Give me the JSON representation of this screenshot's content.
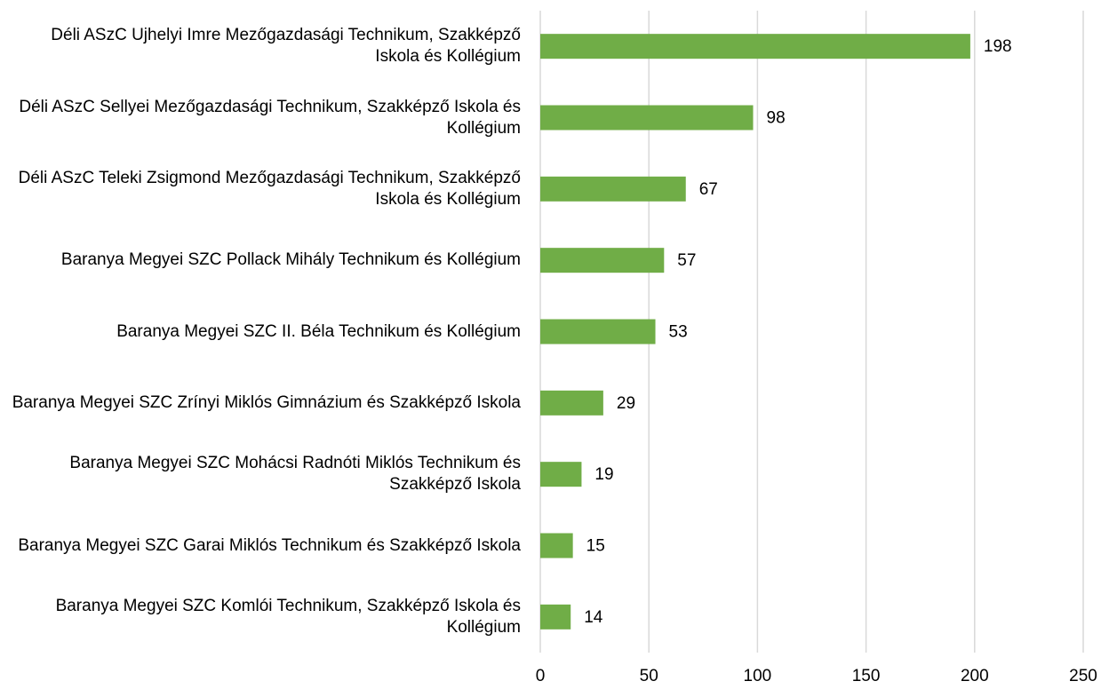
{
  "chart_data": {
    "type": "bar",
    "orientation": "horizontal",
    "categories": [
      "Déli ASzC Ujhelyi Imre Mezőgazdasági Technikum, Szakképző Iskola és Kollégium",
      "Déli ASzC Sellyei Mezőgazdasági Technikum, Szakképző Iskola és Kollégium",
      "Déli ASzC Teleki Zsigmond Mezőgazdasági Technikum, Szakképző Iskola és Kollégium",
      "Baranya Megyei SZC Pollack Mihály Technikum és Kollégium",
      "Baranya Megyei SZC II. Béla Technikum és Kollégium",
      "Baranya Megyei SZC Zrínyi Miklós Gimnázium és Szakképző Iskola",
      "Baranya Megyei SZC Mohácsi Radnóti Miklós Technikum és Szakképző Iskola",
      "Baranya Megyei SZC Garai Miklós Technikum és Szakképző Iskola",
      "Baranya Megyei SZC Komlói Technikum, Szakképző Iskola és Kollégium"
    ],
    "values": [
      198,
      98,
      67,
      57,
      53,
      29,
      19,
      15,
      14
    ],
    "color": "#70ad47",
    "xlim": [
      0,
      250
    ],
    "xticks": [
      0,
      50,
      100,
      150,
      200,
      250
    ],
    "grid": true
  }
}
